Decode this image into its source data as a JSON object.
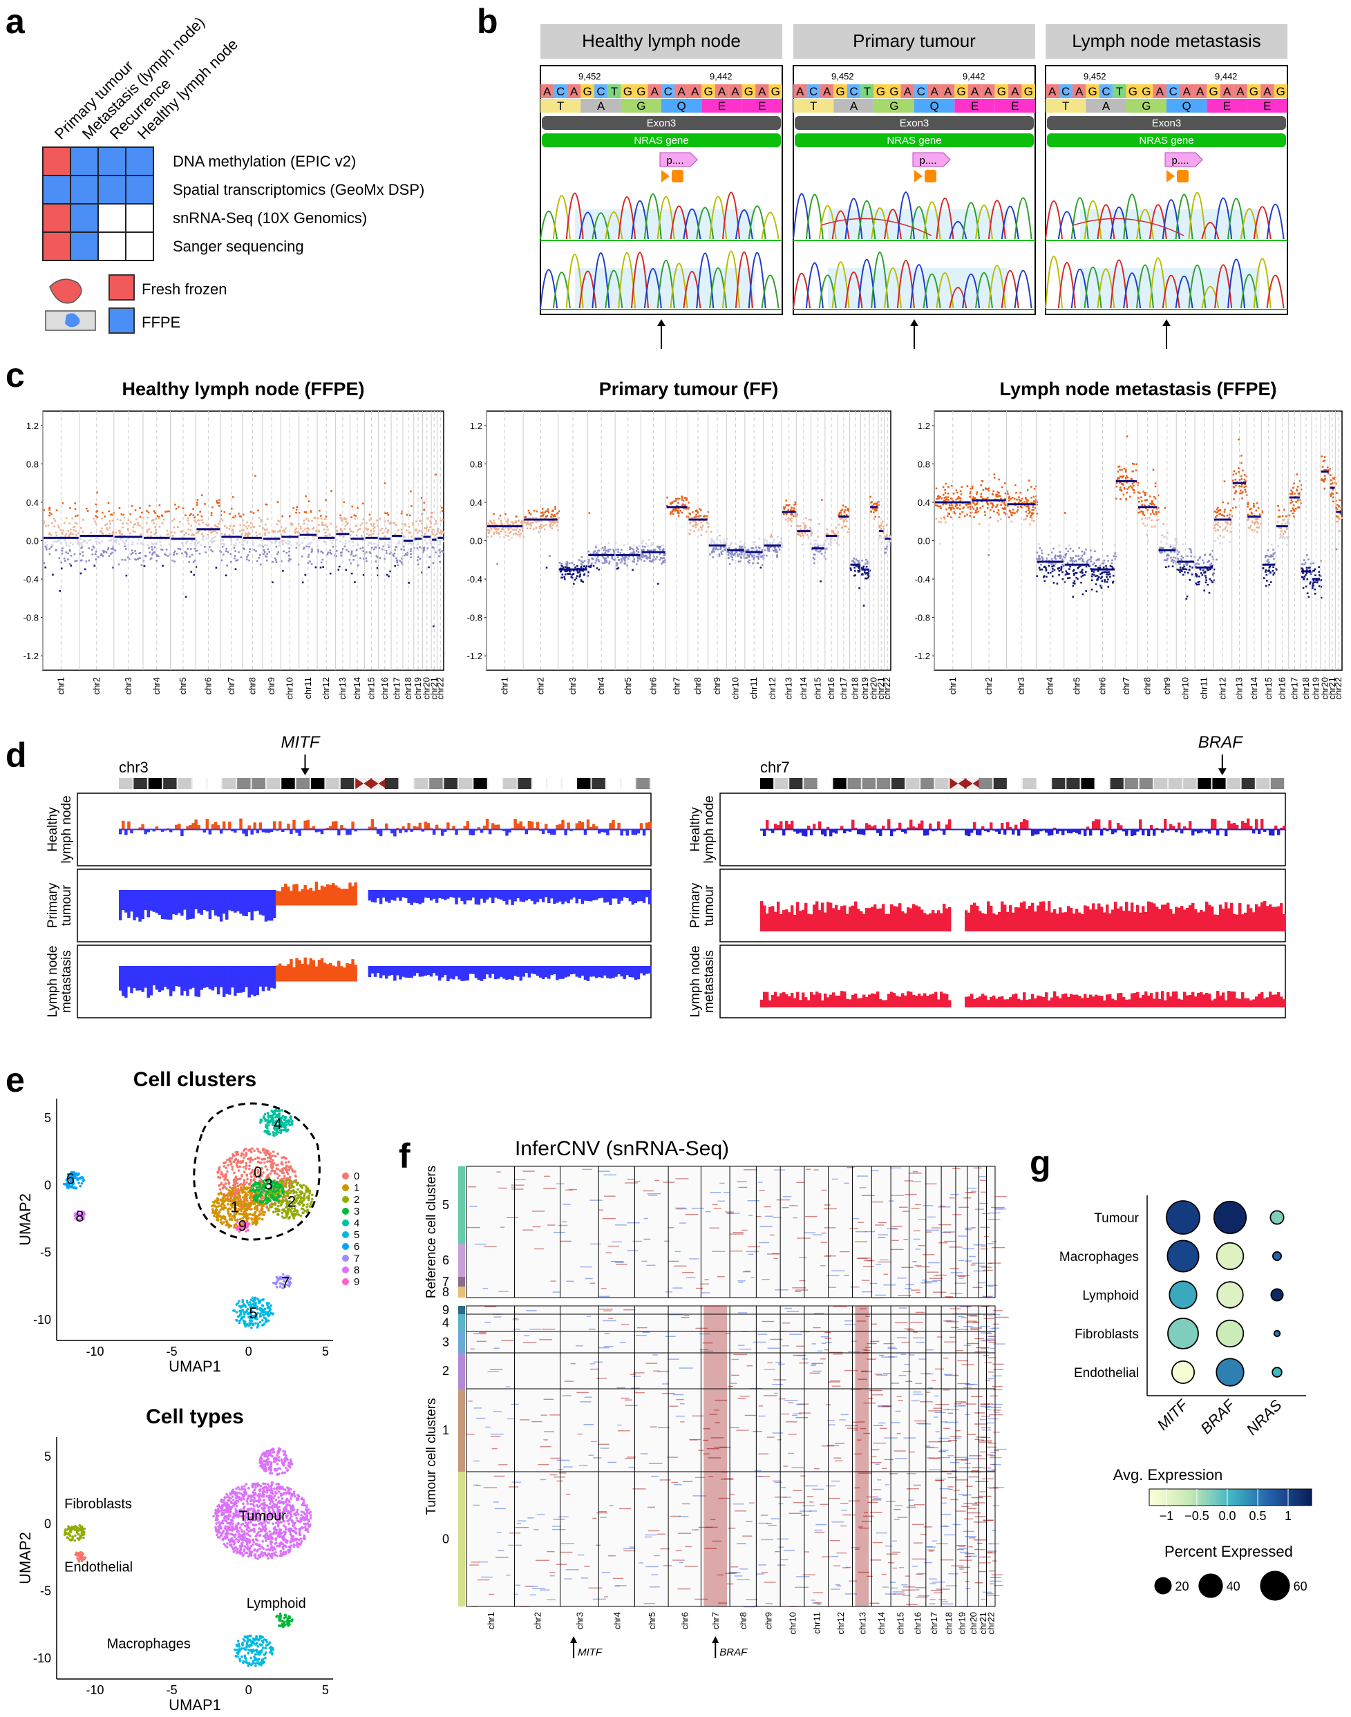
{
  "panels": {
    "a": "a",
    "b": "b",
    "c": "c",
    "d": "d",
    "e": "e",
    "f": "f",
    "g": "g"
  },
  "panel_a": {
    "columns": [
      "Primary tumour",
      "Metastasis (lymph node)",
      "Recurrence",
      "Healthy lymph node"
    ],
    "rows": [
      "DNA methylation (EPIC v2)",
      "Spatial transcriptomics (GeoMx DSP)",
      "snRNA-Seq (10X Genomics)",
      "Sanger sequencing"
    ],
    "grid": [
      [
        "FF",
        "FFPE",
        "FFPE",
        "FFPE"
      ],
      [
        "FFPE",
        "FFPE",
        "FFPE",
        "FFPE"
      ],
      [
        "FF",
        "FFPE",
        "none",
        "none"
      ],
      [
        "FF",
        "FFPE",
        "none",
        "none"
      ]
    ],
    "legend": {
      "fresh_frozen": "Fresh frozen",
      "ffpe": "FFPE"
    },
    "colors": {
      "ff": "#f05a5a",
      "ffpe": "#4b8ef5"
    }
  },
  "panel_b": {
    "samples": [
      "Healthy lymph node",
      "Primary tumour",
      "Lymph node metastasis"
    ],
    "sequence": [
      "A",
      "C",
      "A",
      "G",
      "C",
      "T",
      "G",
      "G",
      "A",
      "C",
      "A",
      "A",
      "G",
      "A",
      "A",
      "G",
      "A",
      "G"
    ],
    "aa": [
      "T",
      "A",
      "G",
      "Q",
      "E",
      "E"
    ],
    "pos_left": "9,452",
    "pos_right": "9,442",
    "exon": "Exon3",
    "gene": "NRAS gene",
    "feature": "p...."
  },
  "panel_c": {
    "titles": [
      "Healthy lymph node (FFPE)",
      "Primary tumour (FF)",
      "Lymph node metastasis (FFPE)"
    ],
    "yticks": [
      "1.2",
      "0.8",
      "0.4",
      "0.0",
      "-0.4",
      "-0.8",
      "-1.2"
    ],
    "chromosomes": [
      "chr1",
      "chr2",
      "chr3",
      "chr4",
      "chr5",
      "chr6",
      "chr7",
      "chr8",
      "chr9",
      "chr10",
      "chr11",
      "chr12",
      "chr13",
      "chr14",
      "chr15",
      "chr16",
      "chr17",
      "chr18",
      "chr19",
      "chr20",
      "chr21",
      "chr22"
    ],
    "segments": [
      [
        0.03,
        0.05,
        0.04,
        0.03,
        0.02,
        0.12,
        0.04,
        0.03,
        0.02,
        0.04,
        0.06,
        0.03,
        0.07,
        0.02,
        0.03,
        0.02,
        0.05,
        0.0,
        0.02,
        0.04,
        0.01,
        0.03
      ],
      [
        0.15,
        0.22,
        -0.3,
        -0.15,
        -0.15,
        -0.12,
        0.35,
        0.22,
        -0.05,
        -0.1,
        -0.12,
        -0.05,
        0.3,
        0.1,
        -0.08,
        0.05,
        0.25,
        -0.25,
        -0.3,
        0.35,
        0.1,
        0.02
      ],
      [
        0.4,
        0.42,
        0.38,
        -0.22,
        -0.25,
        -0.3,
        0.62,
        0.35,
        -0.1,
        -0.22,
        -0.28,
        0.22,
        0.6,
        0.25,
        -0.25,
        0.15,
        0.45,
        -0.32,
        -0.4,
        0.72,
        0.55,
        0.3
      ]
    ]
  },
  "panel_d": {
    "left": {
      "chr": "chr3",
      "gene": "MITF"
    },
    "right": {
      "chr": "chr7",
      "gene": "BRAF"
    },
    "tracks": [
      "Healthy lymph node",
      "Primary tumour",
      "Lymph node metastasis"
    ]
  },
  "panel_e": {
    "title1": "Cell clusters",
    "title2": "Cell types",
    "xlabel": "UMAP1",
    "ylabel": "UMAP2",
    "yticks": [
      "5",
      "0",
      "-5",
      "-10"
    ],
    "xticks": [
      "-10",
      "-5",
      "0",
      "5"
    ],
    "clusters": [
      "0",
      "1",
      "2",
      "3",
      "4",
      "5",
      "6",
      "7",
      "8",
      "9"
    ],
    "cluster_colors": [
      "#f8766d",
      "#d39200",
      "#93aa00",
      "#00ba38",
      "#00c19f",
      "#00b9e3",
      "#00a5ff",
      "#9c8cff",
      "#db72fb",
      "#ff61c3"
    ],
    "cell_types": [
      "Tumour",
      "Fibroblasts",
      "Endothelial",
      "Lymphoid",
      "Macrophages"
    ]
  },
  "panel_f": {
    "title": "InferCNV (snRNA-Seq)",
    "ref_label": "Reference cell clusters",
    "tumour_label": "Tumour cell clusters",
    "ref_clusters": [
      "5",
      "6",
      "7",
      "8"
    ],
    "tumour_clusters": [
      "9",
      "4",
      "3",
      "2",
      "1",
      "0"
    ],
    "chromosomes": [
      "chr1",
      "chr2",
      "chr3",
      "chr4",
      "chr5",
      "chr6",
      "chr7",
      "chr8",
      "chr9",
      "chr10",
      "chr11",
      "chr12",
      "chr13",
      "chr14",
      "chr15",
      "chr16",
      "chr17",
      "chr18",
      "chr19",
      "chr20",
      "chr21",
      "chr22"
    ],
    "arrows": [
      "MITF",
      "BRAF"
    ]
  },
  "panel_g": {
    "chart_data": {
      "type": "dot",
      "rows": [
        "Tumour",
        "Macrophages",
        "Lymphoid",
        "Fibroblasts",
        "Endothelial"
      ],
      "columns": [
        "MITF",
        "BRAF",
        "NRAS"
      ],
      "avg_expression": [
        [
          1.0,
          1.2,
          -0.3
        ],
        [
          0.9,
          -0.9,
          0.6
        ],
        [
          0.1,
          -0.9,
          1.2
        ],
        [
          -0.3,
          -0.7,
          0.5
        ],
        [
          -1.2,
          0.4,
          0.0
        ]
      ],
      "percent_expressed": [
        [
          62,
          58,
          10
        ],
        [
          55,
          40,
          4
        ],
        [
          42,
          38,
          8
        ],
        [
          52,
          40,
          2
        ],
        [
          28,
          42,
          5
        ]
      ],
      "legend_title1": "Avg. Expression",
      "legend_ticks1": [
        "−1",
        "−0.5",
        "0.0",
        "0.5",
        "1"
      ],
      "legend_title2": "Percent Expressed",
      "legend_ticks2": [
        "20",
        "40",
        "60"
      ]
    }
  }
}
